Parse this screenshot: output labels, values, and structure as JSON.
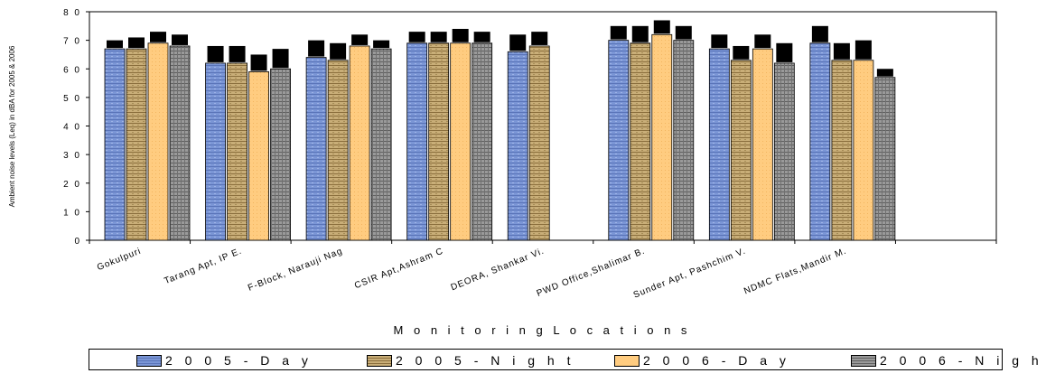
{
  "chart_data": {
    "type": "bar",
    "categories": [
      "Gokulpuri",
      "Tarang Apt, IP E.",
      "F-Block, Narauji Nag",
      "CSIR Apt,Ashram C",
      "DEORA, Shankar Vi.",
      "PWD Office,Shalimar B.",
      "Sunder Apt, Pashchim V.",
      "NDMC Flats,Mandir M.",
      ""
    ],
    "series": [
      {
        "name": "2005-Day",
        "values": [
          67,
          62,
          64,
          69,
          66,
          70,
          67,
          69,
          null
        ]
      },
      {
        "name": "2005-Night",
        "values": [
          67,
          62,
          63,
          69,
          null,
          69,
          63,
          63,
          null
        ]
      },
      {
        "name": "2006-Day",
        "values": [
          69,
          59,
          68,
          69,
          68,
          72,
          67,
          63,
          null
        ]
      },
      {
        "name": "2006-Night",
        "values": [
          68,
          60,
          67,
          69,
          null,
          70,
          62,
          57,
          null
        ]
      }
    ],
    "bar_values_by_group": [
      [
        67,
        67,
        69,
        68
      ],
      [
        62,
        62,
        59,
        60
      ],
      [
        64,
        63,
        68,
        67
      ],
      [
        69,
        69,
        69,
        69
      ],
      [
        66,
        68,
        null,
        null
      ],
      [
        70,
        69,
        72,
        70
      ],
      [
        67,
        63,
        67,
        62
      ],
      [
        69,
        63,
        63,
        57
      ]
    ],
    "error_bar_tops_by_group": [
      [
        70,
        71,
        73,
        72
      ],
      [
        68,
        68,
        65,
        67
      ],
      [
        70,
        69,
        72,
        70
      ],
      [
        73,
        73,
        74,
        73
      ],
      [
        72,
        73,
        null,
        null
      ],
      [
        75,
        75,
        77,
        75
      ],
      [
        72,
        68,
        72,
        69
      ],
      [
        75,
        69,
        70,
        60
      ]
    ],
    "xlabel": "M o n i t o r i n g   L o c a t i o n s",
    "ylabel": "Ambient noise levels (Leq) in dBA for 2005 & 2006",
    "ylim": [
      0,
      80
    ],
    "yticks": [
      "0",
      "1 0",
      "2 0",
      "3 0",
      "4 0",
      "5 0",
      "6 0",
      "7 0",
      "8 0"
    ],
    "grid": false,
    "legend_position": "bottom",
    "colors": {
      "2005-Day": "#7b96d6",
      "2005-Night": "#c9ae78",
      "2006-Day": "#ffcc80",
      "2006-Night": "#8f8f8f",
      "error_bar": "#000000"
    }
  },
  "legend": {
    "items": [
      {
        "label": "2 0 0 5 - D a y",
        "color": "#7b96d6"
      },
      {
        "label": "2 0 0 5 - N i g h t",
        "color": "#c9ae78"
      },
      {
        "label": "2 0 0 6 - D a y",
        "color": "#ffcc80"
      },
      {
        "label": "2 0 0 6 - N i g h t",
        "color": "#8f8f8f"
      }
    ]
  }
}
